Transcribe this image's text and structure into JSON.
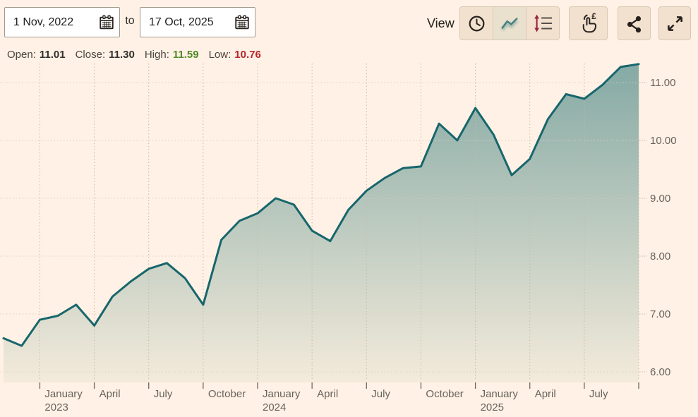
{
  "header": {
    "date_from": {
      "value": "1 Nov, 2022"
    },
    "range_separator": "to",
    "date_to": {
      "value": "17 Oct, 2025"
    },
    "view_label": "View",
    "view_buttons": [
      {
        "name": "interval",
        "icon": "clock-icon",
        "selected": false
      },
      {
        "name": "line-chart",
        "icon": "line-chart-icon",
        "selected": true
      },
      {
        "name": "price-levels",
        "icon": "updown-lines-icon",
        "selected": false
      }
    ],
    "action_buttons": [
      {
        "name": "trade",
        "icon": "tap-to-trade-pound-icon"
      },
      {
        "name": "share",
        "icon": "share-icon"
      },
      {
        "name": "fullscreen",
        "icon": "expand-icon"
      }
    ]
  },
  "stats": {
    "open": {
      "label": "Open:",
      "value": "11.01"
    },
    "close": {
      "label": "Close:",
      "value": "11.30"
    },
    "high": {
      "label": "High:",
      "value": "11.59"
    },
    "low": {
      "label": "Low:",
      "value": "10.76"
    }
  },
  "colors": {
    "background": "#fff1e5",
    "button_bg": "#f2e1cf",
    "button_border": "#d9c8b4",
    "selected_button_bg": "#e9e1ce",
    "line": "#17666c",
    "fill_top": "#84a9a4",
    "fill_bottom": "#f4ebdb",
    "grid_horizontal": "#ddcdbb",
    "grid_vertical": "#c8b8a6",
    "axis_text": "#68635c",
    "tick": "#6e6960",
    "value_text": "#33302c",
    "high_green": "#4f8b25",
    "low_red": "#b8252b",
    "arrow_claret": "#9a2741",
    "icon_dark": "#29241f"
  },
  "chart_data": {
    "type": "area",
    "title": "",
    "x": [
      "Nov 2022",
      "Dec 2022",
      "Jan 2023",
      "Feb 2023",
      "Mar 2023",
      "Apr 2023",
      "May 2023",
      "Jun 2023",
      "Jul 2023",
      "Aug 2023",
      "Sep 2023",
      "Oct 2023",
      "Nov 2023",
      "Dec 2023",
      "Jan 2024",
      "Feb 2024",
      "Mar 2024",
      "Apr 2024",
      "May 2024",
      "Jun 2024",
      "Jul 2024",
      "Aug 2024",
      "Sep 2024",
      "Oct 2024",
      "Nov 2024",
      "Dec 2024",
      "Jan 2025",
      "Feb 2025",
      "Mar 2025",
      "Apr 2025",
      "May 2025",
      "Jun 2025",
      "Jul 2025",
      "Aug 2025",
      "Sep 2025",
      "Oct 2025"
    ],
    "values": [
      6.58,
      6.45,
      6.9,
      6.97,
      7.16,
      6.8,
      7.3,
      7.56,
      7.78,
      7.88,
      7.62,
      7.16,
      8.28,
      8.61,
      8.74,
      9.0,
      8.89,
      8.44,
      8.26,
      8.8,
      9.13,
      9.35,
      9.52,
      9.55,
      10.29,
      10.0,
      10.56,
      10.1,
      9.4,
      9.68,
      10.37,
      10.8,
      10.72,
      10.96,
      11.27,
      11.32
    ],
    "y_ticks": [
      6,
      7,
      8,
      9,
      10,
      11
    ],
    "y_tick_labels": [
      "6.00",
      "7.00",
      "8.00",
      "9.00",
      "10.00",
      "11.00"
    ],
    "x_ticks": [
      {
        "month_index": 2,
        "label": "January",
        "sublabel": "2023"
      },
      {
        "month_index": 5,
        "label": "April",
        "sublabel": ""
      },
      {
        "month_index": 8,
        "label": "July",
        "sublabel": ""
      },
      {
        "month_index": 11,
        "label": "October",
        "sublabel": ""
      },
      {
        "month_index": 14,
        "label": "January",
        "sublabel": "2024"
      },
      {
        "month_index": 17,
        "label": "April",
        "sublabel": ""
      },
      {
        "month_index": 20,
        "label": "July",
        "sublabel": ""
      },
      {
        "month_index": 23,
        "label": "October",
        "sublabel": ""
      },
      {
        "month_index": 26,
        "label": "January",
        "sublabel": "2025"
      },
      {
        "month_index": 29,
        "label": "April",
        "sublabel": ""
      },
      {
        "month_index": 32,
        "label": "July",
        "sublabel": ""
      },
      {
        "month_index": 35,
        "label": "",
        "sublabel": ""
      }
    ],
    "ylim": [
      5.9,
      11.4
    ],
    "grid": "dotted",
    "legend": "none",
    "y_axis_position": "right"
  }
}
